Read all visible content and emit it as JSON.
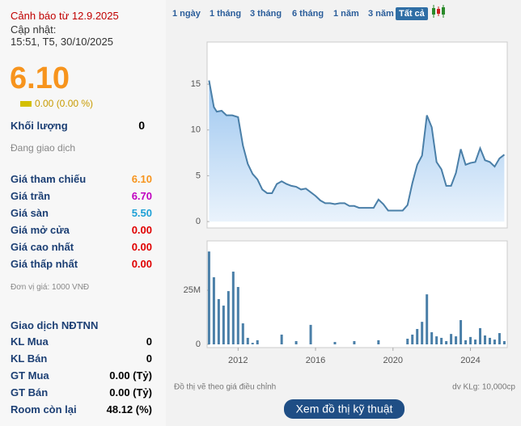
{
  "warning": "Cảnh báo từ 12.9.2025",
  "updated_label": "Cập nhật:",
  "updated_time": "15:51, T5, 30/10/2025",
  "price": "6.10",
  "change": "0.00 (0.00 %)",
  "volume": {
    "label": "Khối lượng",
    "value": "0"
  },
  "status": "Đang giao dịch",
  "price_rows": [
    {
      "label": "Giá tham chiếu",
      "value": "6.10",
      "color": "#f7941d"
    },
    {
      "label": "Giá trần",
      "value": "6.70",
      "color": "#c000c0"
    },
    {
      "label": "Giá sàn",
      "value": "5.50",
      "color": "#1ea0d6"
    },
    {
      "label": "Giá mở cửa",
      "value": "0.00",
      "color": "#e00000"
    },
    {
      "label": "Giá cao nhất",
      "value": "0.00",
      "color": "#e00000"
    },
    {
      "label": "Giá thấp nhất",
      "value": "0.00",
      "color": "#e00000"
    }
  ],
  "unit_note": "Đơn vị giá: 1000 VNĐ",
  "foreign": {
    "title": "Giao dịch NĐTNN",
    "rows": [
      {
        "label": "KL Mua",
        "value": "0"
      },
      {
        "label": "KL Bán",
        "value": "0"
      },
      {
        "label": "GT Mua",
        "value": "0.00 (Tỷ)"
      },
      {
        "label": "GT Bán",
        "value": "0.00 (Tỷ)"
      },
      {
        "label": "Room còn lại",
        "value": "48.12 (%)"
      }
    ]
  },
  "tabs": [
    "1 ngày",
    "1 tháng",
    "3 tháng",
    "6 tháng",
    "1 năm",
    "3 năm",
    "Tất cả"
  ],
  "active_tab": 6,
  "chart_data": [
    {
      "type": "area",
      "color": "#4a7fa8",
      "x": [
        2010.5,
        2010.75,
        2010.9,
        2011.15,
        2011.4,
        2011.7,
        2012.0,
        2012.25,
        2012.5,
        2012.75,
        2013.0,
        2013.25,
        2013.5,
        2013.75,
        2014.0,
        2014.25,
        2014.5,
        2014.75,
        2015.0,
        2015.25,
        2015.5,
        2015.75,
        2016.0,
        2016.25,
        2016.5,
        2016.75,
        2017.0,
        2017.25,
        2017.5,
        2017.75,
        2018.0,
        2018.25,
        2018.5,
        2018.75,
        2019.0,
        2019.25,
        2019.5,
        2019.75,
        2020.0,
        2020.25,
        2020.5,
        2020.75,
        2021.0,
        2021.25,
        2021.5,
        2021.75,
        2022.0,
        2022.25,
        2022.5,
        2022.75,
        2023.0,
        2023.25,
        2023.5,
        2023.75,
        2024.0,
        2024.25,
        2024.5,
        2024.75,
        2025.0,
        2025.25,
        2025.5,
        2025.75
      ],
      "values": [
        15.4,
        12.5,
        12.0,
        12.1,
        11.6,
        11.6,
        11.4,
        8.3,
        6.3,
        5.2,
        4.6,
        3.5,
        3.1,
        3.1,
        4.1,
        4.4,
        4.1,
        3.9,
        3.8,
        3.5,
        3.6,
        3.2,
        2.8,
        2.3,
        2.0,
        2.0,
        1.9,
        2.0,
        2.0,
        1.7,
        1.7,
        1.5,
        1.5,
        1.5,
        1.5,
        2.4,
        1.9,
        1.2,
        1.2,
        1.2,
        1.2,
        1.8,
        4.2,
        6.2,
        7.2,
        11.6,
        10.3,
        6.5,
        5.7,
        3.9,
        3.9,
        5.3,
        7.9,
        6.2,
        6.4,
        6.5,
        8.0,
        6.7,
        6.5,
        6.0,
        6.9,
        7.3
      ],
      "xlim": [
        2010.4,
        2025.9
      ],
      "ylim": [
        -0.7,
        19.6
      ],
      "yticks": [
        0,
        5,
        10,
        15
      ]
    },
    {
      "type": "bar",
      "color": "#4a7fa8",
      "x": [
        2010.5,
        2010.75,
        2011.0,
        2011.25,
        2011.5,
        2011.75,
        2012.0,
        2012.25,
        2012.5,
        2012.75,
        2013.0,
        2014.25,
        2015.0,
        2015.75,
        2017.0,
        2018.0,
        2019.25,
        2020.75,
        2021.0,
        2021.25,
        2021.5,
        2021.75,
        2022.0,
        2022.25,
        2022.5,
        2022.75,
        2023.0,
        2023.25,
        2023.5,
        2023.75,
        2024.0,
        2024.25,
        2024.5,
        2024.75,
        2025.0,
        2025.25,
        2025.5,
        2025.75
      ],
      "values": [
        42.9,
        31.0,
        20.9,
        17.9,
        24.6,
        33.6,
        26.5,
        9.7,
        3.0,
        0.7,
        1.9,
        4.5,
        1.5,
        9.0,
        1.1,
        1.5,
        1.9,
        2.6,
        4.5,
        7.1,
        10.4,
        23.1,
        5.6,
        3.7,
        3.0,
        1.5,
        4.8,
        3.7,
        11.2,
        1.9,
        3.4,
        2.2,
        7.5,
        4.1,
        3.0,
        2.2,
        5.2,
        1.5
      ],
      "xlim": [
        2010.4,
        2025.9
      ],
      "ylim": [
        -1.5,
        47.8
      ],
      "yticks": [
        0,
        {
          "value": 25,
          "label": "25M"
        }
      ],
      "xticks": [
        2012,
        2016,
        2020,
        2024
      ]
    }
  ],
  "chart_note": "Đồ thị vẽ theo giá điều chỉnh",
  "volume_unit": "dv KLg: 10,000cp",
  "button": "Xem đồ thị kỹ thuật"
}
